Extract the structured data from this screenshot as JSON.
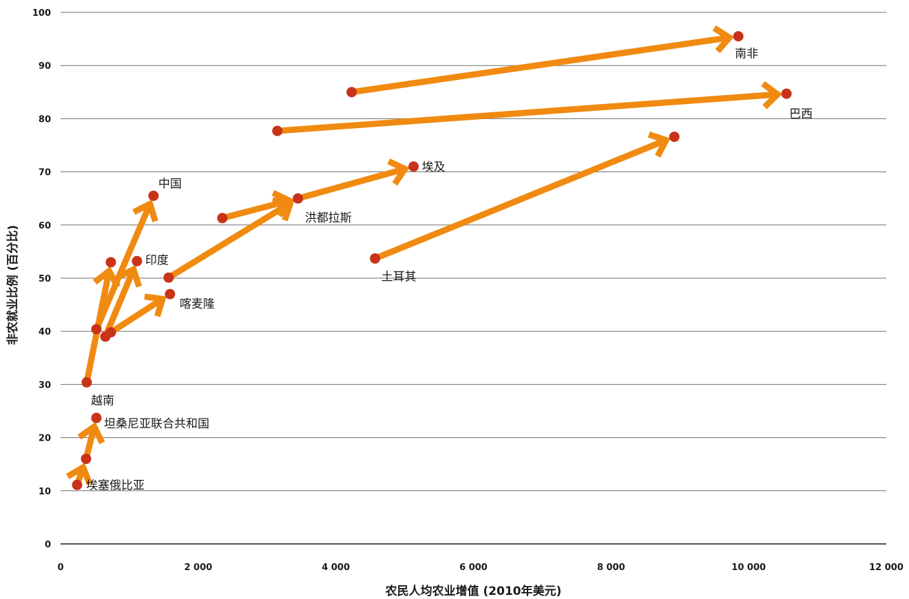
{
  "chart_data": {
    "type": "scatter",
    "title": "",
    "xlabel": "农民人均农业增值 (2010年美元)",
    "ylabel": "非农就业比例 (百分比)",
    "xlim": [
      0,
      12000
    ],
    "ylim": [
      0,
      100
    ],
    "x_ticks": [
      0,
      2000,
      4000,
      6000,
      8000,
      10000,
      12000
    ],
    "x_tick_labels": [
      "0",
      "2 000",
      "4 000",
      "6 000",
      "8 000",
      "10 000",
      "12 000"
    ],
    "y_ticks": [
      0,
      10,
      20,
      30,
      40,
      50,
      60,
      70,
      80,
      90,
      100
    ],
    "y_tick_labels": [
      "0",
      "10",
      "20",
      "30",
      "40",
      "50",
      "60",
      "70",
      "80",
      "90",
      "100"
    ],
    "grid": "horizontal",
    "legend": "none",
    "colors": {
      "arrow": "#F08A10",
      "point": "#C8331A",
      "grid": "#6e6e6e"
    },
    "trajectories": [
      {
        "label": "南非",
        "points": [
          [
            4230,
            85
          ],
          [
            9850,
            95.5
          ]
        ]
      },
      {
        "label": "巴西",
        "points": [
          [
            3150,
            77.7
          ],
          [
            10550,
            84.7
          ]
        ]
      },
      {
        "label": "土耳其",
        "points": [
          [
            4570,
            53.7
          ],
          [
            8920,
            76.6
          ]
        ]
      },
      {
        "label": "埃及",
        "points": [
          [
            2350,
            61.3
          ],
          [
            3450,
            65
          ],
          [
            5130,
            71
          ]
        ]
      },
      {
        "label": "洪都拉斯",
        "points": [
          [
            1570,
            50.1
          ],
          [
            3450,
            65
          ]
        ]
      },
      {
        "label": "中国",
        "points": [
          [
            520,
            40.4
          ],
          [
            1350,
            65.5
          ]
        ]
      },
      {
        "label": "越南",
        "points": [
          [
            380,
            30.4
          ],
          [
            730,
            53
          ]
        ]
      },
      {
        "label": "印度",
        "points": [
          [
            650,
            39
          ],
          [
            1110,
            53.2
          ]
        ]
      },
      {
        "label": "喀麦隆",
        "points": [
          [
            730,
            39.8
          ],
          [
            1590,
            47
          ]
        ]
      },
      {
        "label": "坦桑尼亚联合共和国",
        "points": [
          [
            370,
            16
          ],
          [
            520,
            23.7
          ]
        ]
      },
      {
        "label": "埃塞俄比亚",
        "points": [
          [
            240,
            11.1
          ],
          [
            370,
            16
          ]
        ]
      }
    ],
    "annotations": [
      {
        "text": "南非",
        "x": 9850,
        "y": 95.5
      },
      {
        "text": "巴西",
        "x": 10550,
        "y": 84.7
      },
      {
        "text": "埃及",
        "x": 5130,
        "y": 71
      },
      {
        "text": "洪都拉斯",
        "x": 3450,
        "y": 65
      },
      {
        "text": "土耳其",
        "x": 4570,
        "y": 53.7
      },
      {
        "text": "中国",
        "x": 1350,
        "y": 65.5
      },
      {
        "text": "印度",
        "x": 1110,
        "y": 53.2
      },
      {
        "text": "喀麦隆",
        "x": 1590,
        "y": 47
      },
      {
        "text": "越南",
        "x": 380,
        "y": 30.4
      },
      {
        "text": "坦桑尼亚联合共和国",
        "x": 520,
        "y": 23.7
      },
      {
        "text": "埃塞俄比亚",
        "x": 240,
        "y": 11.1
      }
    ]
  }
}
